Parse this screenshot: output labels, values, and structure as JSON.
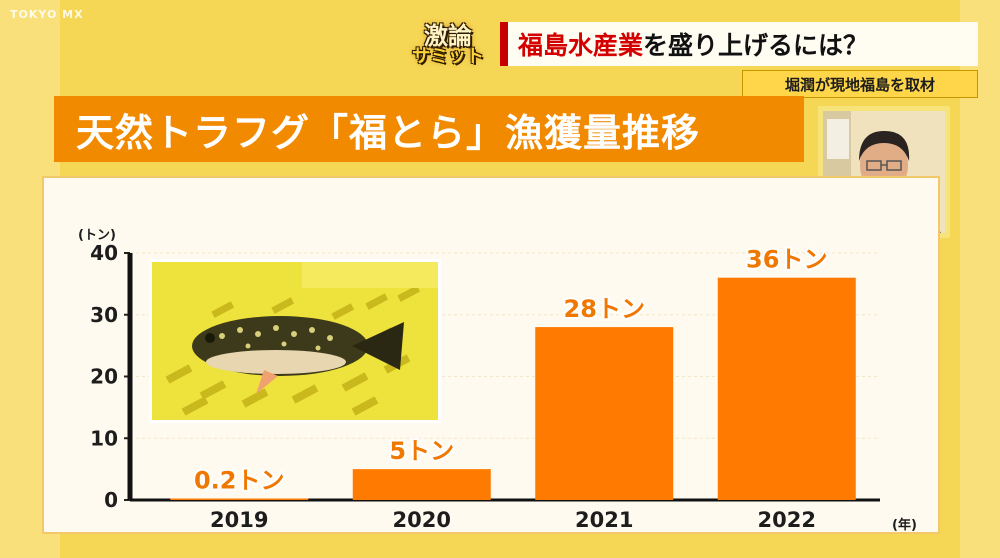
{
  "channel": "TOKYO MX",
  "show_logo": {
    "line1": "激論",
    "line2": "サミット"
  },
  "headline": {
    "highlight": "福島水産業",
    "rest": "を盛り上げるには？"
  },
  "subhead": "堀潤が現地福島を取材",
  "colors": {
    "bar": "#ff7a00",
    "bar_label": "#f07800",
    "title_bar": "#f28a00",
    "headline_red": "#d40000"
  },
  "chart_data": {
    "type": "bar",
    "title": "天然トラフグ「福とら」漁獲量推移",
    "ylabel": "(トン)",
    "xlabel": "(年)",
    "categories": [
      "2019",
      "2020",
      "2021",
      "2022"
    ],
    "values": [
      0.2,
      5,
      28,
      36
    ],
    "data_labels": [
      "0.2トン",
      "5トン",
      "28トン",
      "36トン"
    ],
    "ylim": [
      0,
      40
    ],
    "yticks": [
      0,
      10,
      20,
      30,
      40
    ],
    "grid": true
  }
}
